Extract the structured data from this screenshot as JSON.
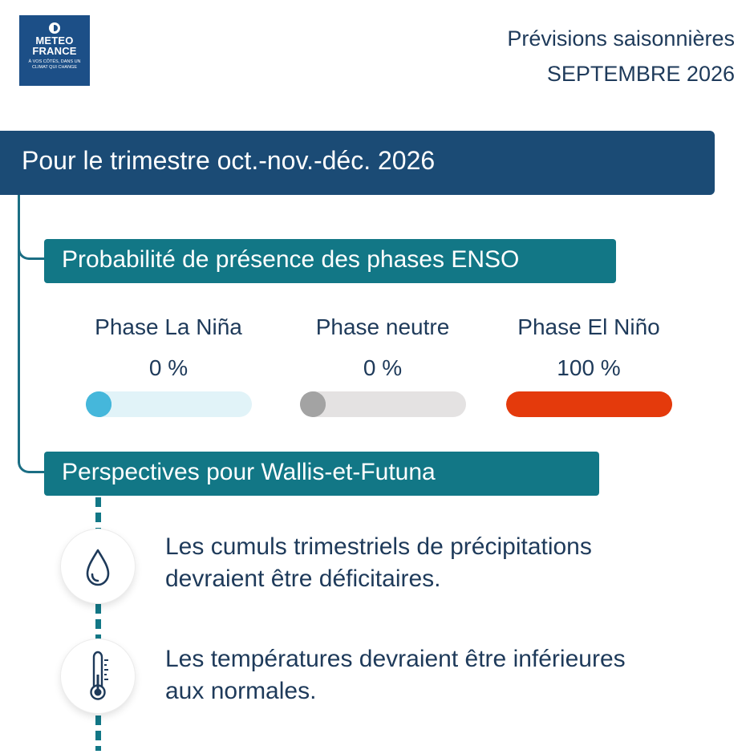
{
  "logo": {
    "line1": "METEO",
    "line2": "FRANCE",
    "tagline": "À VOS CÔTÉS, DANS UN CLIMAT QUI CHANGE",
    "background_color": "#1c4f87"
  },
  "header": {
    "line1": "Prévisions saisonnières",
    "line2": "SEPTEMBRE 2026"
  },
  "main_banner": {
    "title": "Pour le trimestre oct.-nov.-déc. 2026",
    "color": "#1b4b75"
  },
  "enso_section": {
    "title": "Probabilité de présence des phases ENSO",
    "color": "#127786",
    "phases": [
      {
        "label": "Phase La Niña",
        "value": "0 %",
        "probability": 0,
        "track_color": "#e1f3f8",
        "fill_color": "#45b7db"
      },
      {
        "label": "Phase neutre",
        "value": "0 %",
        "probability": 0,
        "track_color": "#e4e2e2",
        "fill_color": "#a3a3a3"
      },
      {
        "label": "Phase El Niño",
        "value": "100 %",
        "probability": 100,
        "track_color": "#f3d6cf",
        "fill_color": "#e43a0c"
      }
    ]
  },
  "outlook_section": {
    "title": "Perspectives pour Wallis-et-Futuna",
    "items": [
      {
        "icon": "water-drop-icon",
        "text_line1": "Les cumuls trimestriels de précipitations",
        "text_line2": "devraient être déficitaires."
      },
      {
        "icon": "thermometer-icon",
        "text_line1": "Les températures devraient être inférieures",
        "text_line2": "aux normales."
      }
    ]
  }
}
